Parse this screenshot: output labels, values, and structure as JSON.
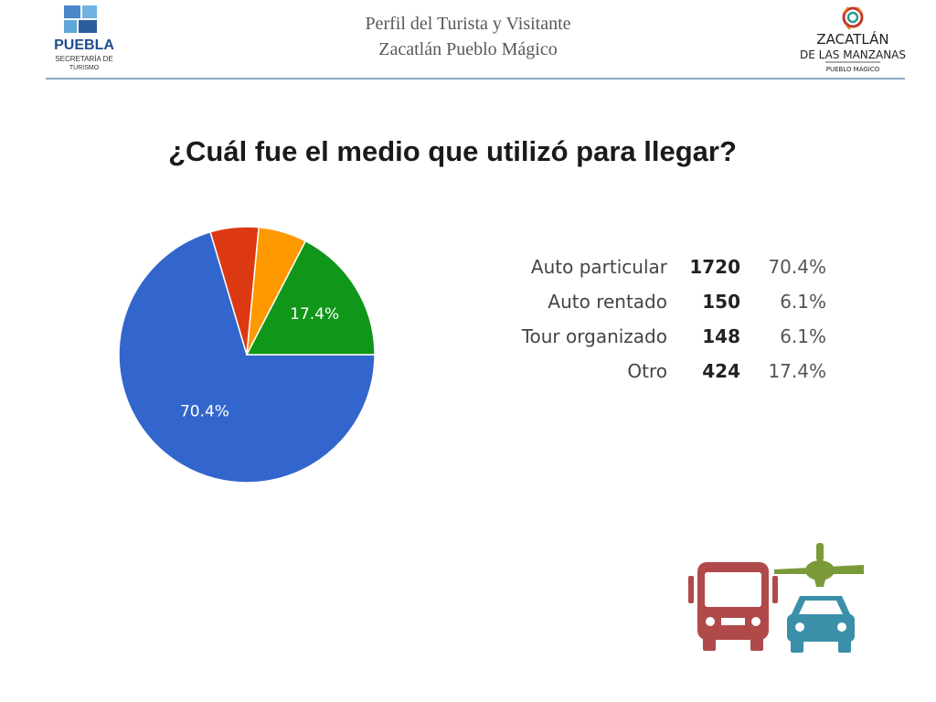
{
  "header": {
    "line1": "Perfil del Turista y Visitante",
    "line2": "Zacatlán Pueblo Mágico"
  },
  "logo_left": {
    "text1": "PUEBLA",
    "text2": "SECRETARÍA DE",
    "text3": "TURISMO",
    "icon": "puebla-logo-icon"
  },
  "logo_right": {
    "text1": "ZACATLÁN",
    "text2": "DE LAS MANZANAS",
    "text3": "PUEBLO MÁGICO",
    "icon": "zacatlan-logo-icon"
  },
  "question": "¿Cuál fue el medio que utilizó para llegar?",
  "chart_data": {
    "type": "pie",
    "title": "",
    "categories": [
      "Auto particular",
      "Auto rentado",
      "Tour organizado",
      "Otro"
    ],
    "counts": [
      1720,
      150,
      148,
      424
    ],
    "percent_labels": [
      "70.4%",
      "6.1%",
      "6.1%",
      "17.4%"
    ],
    "values": [
      70.4,
      6.1,
      6.1,
      17.4
    ],
    "colors": [
      "#3366cc",
      "#dc3912",
      "#ff9900",
      "#109618"
    ],
    "slice_labels": [
      "70.4%",
      "",
      "",
      "17.4%"
    ],
    "legend_placement": "right"
  },
  "icons": [
    "bus-icon",
    "airplane-icon",
    "car-icon"
  ]
}
